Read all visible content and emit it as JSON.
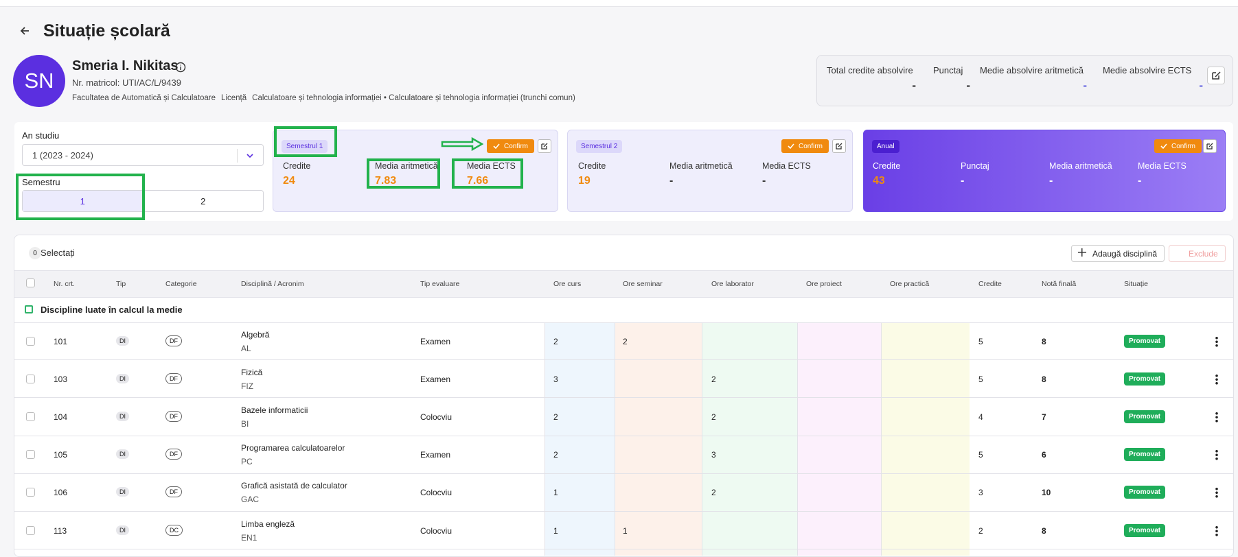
{
  "header": {
    "title": "Situație școlară"
  },
  "student": {
    "initials": "SN",
    "name": "Smeria I. Nikitas",
    "matricol": "Nr. matricol: UTI/AC/L/9439",
    "faculty": "Facultatea de Automatică și Calculatoare",
    "level": "Licență",
    "program": "Calculatoare și tehnologia informației • Calculatoare și tehnologia informației (trunchi comun)"
  },
  "summary": [
    {
      "label": "Total credite absolvire",
      "value": "-"
    },
    {
      "label": "Punctaj",
      "value": "-"
    },
    {
      "label": "Medie absolvire aritmetică",
      "value": "-"
    },
    {
      "label": "Medie absolvire ECTS",
      "value": "-"
    }
  ],
  "filters": {
    "year_label": "An studiu",
    "year_value": "1 (2023 - 2024)",
    "semester_label": "Semestru",
    "semester_options": [
      "1",
      "2"
    ]
  },
  "cards": [
    {
      "badge": "Semestrul 1",
      "confirm": "Confirm",
      "stats": [
        {
          "label": "Credite",
          "value": 24
        },
        {
          "label": "Media aritmetică",
          "value": 7.83
        },
        {
          "label": "Media ECTS",
          "value": 7.66
        }
      ]
    },
    {
      "badge": "Semestrul 2",
      "confirm": "Confirm",
      "stats": [
        {
          "label": "Credite",
          "value": 19
        },
        {
          "label": "Media aritmetică",
          "value": "-"
        },
        {
          "label": "Media ECTS",
          "value": "-"
        }
      ]
    },
    {
      "badge": "Anual",
      "confirm": "Confirm",
      "stats": [
        {
          "label": "Credite",
          "value": 43
        },
        {
          "label": "Punctaj",
          "value": "-"
        },
        {
          "label": "Media aritmetică",
          "value": "-"
        },
        {
          "label": "Media ECTS",
          "value": "-"
        }
      ]
    }
  ],
  "table": {
    "selected_count": 0,
    "selected_label": "Selectați",
    "add_button": "Adaugă disciplină",
    "exclude_button": "Exclude",
    "columns": [
      "Nr. crt.",
      "Tip",
      "Categorie",
      "Disciplină / Acronim",
      "Tip evaluare",
      "Ore curs",
      "Ore seminar",
      "Ore laborator",
      "Ore proiect",
      "Ore practică",
      "Credite",
      "Notă finală",
      "Situație"
    ],
    "group": "Discipline luate în calcul la medie",
    "rows": [
      {
        "nr": 101,
        "tip": "DI",
        "categorie": "DF",
        "name": "Algebră",
        "acronym": "AL",
        "evaluare": "Examen",
        "curs": 2,
        "seminar": 2,
        "laborator": null,
        "proiect": null,
        "practica": null,
        "credite": 5,
        "nota": 8,
        "situatie": "Promovat"
      },
      {
        "nr": 103,
        "tip": "DI",
        "categorie": "DF",
        "name": "Fizică",
        "acronym": "FIZ",
        "evaluare": "Examen",
        "curs": 3,
        "seminar": null,
        "laborator": 2,
        "proiect": null,
        "practica": null,
        "credite": 5,
        "nota": 8,
        "situatie": "Promovat"
      },
      {
        "nr": 104,
        "tip": "DI",
        "categorie": "DF",
        "name": "Bazele informaticii",
        "acronym": "BI",
        "evaluare": "Colocviu",
        "curs": 2,
        "seminar": null,
        "laborator": 2,
        "proiect": null,
        "practica": null,
        "credite": 4,
        "nota": 7,
        "situatie": "Promovat"
      },
      {
        "nr": 105,
        "tip": "DI",
        "categorie": "DF",
        "name": "Programarea calculatoarelor",
        "acronym": "PC",
        "evaluare": "Examen",
        "curs": 2,
        "seminar": null,
        "laborator": 3,
        "proiect": null,
        "practica": null,
        "credite": 5,
        "nota": 6,
        "situatie": "Promovat"
      },
      {
        "nr": 106,
        "tip": "DI",
        "categorie": "DF",
        "name": "Grafică asistată de calculator",
        "acronym": "GAC",
        "evaluare": "Colocviu",
        "curs": 1,
        "seminar": null,
        "laborator": 2,
        "proiect": null,
        "practica": null,
        "credite": 3,
        "nota": 10,
        "situatie": "Promovat"
      },
      {
        "nr": 113,
        "tip": "DI",
        "categorie": "DC",
        "name": "Limba engleză",
        "acronym": "EN1",
        "evaluare": "Colocviu",
        "curs": 1,
        "seminar": 1,
        "laborator": null,
        "proiect": null,
        "practica": null,
        "credite": 2,
        "nota": 8,
        "situatie": "Promovat"
      }
    ]
  }
}
